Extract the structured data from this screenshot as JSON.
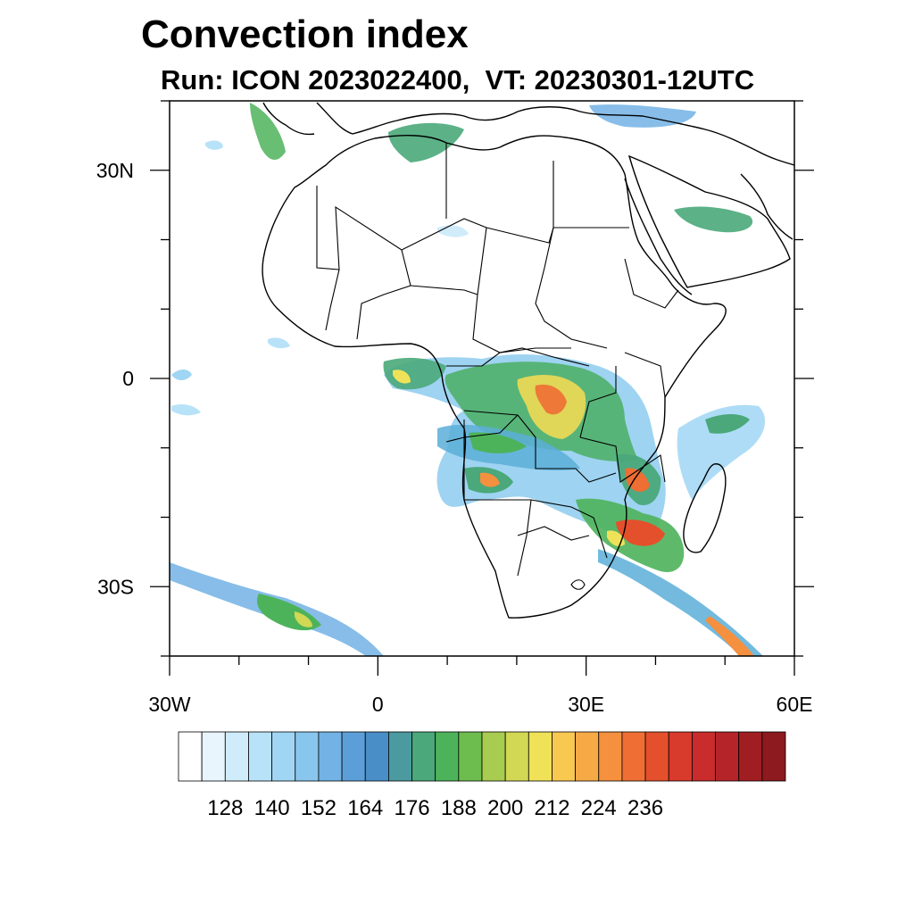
{
  "title": "Convection index",
  "subtitle": "Run: ICON 2023022400,  VT: 20230301-12UTC",
  "map": {
    "projection": "lat-lon",
    "lon_range": [
      -30,
      60
    ],
    "lat_range": [
      -40,
      40
    ],
    "lon_ticks": [
      {
        "value": -30,
        "label": "30W"
      },
      {
        "value": 0,
        "label": "0"
      },
      {
        "value": 30,
        "label": "30E"
      },
      {
        "value": 60,
        "label": "60E"
      }
    ],
    "lat_ticks": [
      {
        "value": 30,
        "label": "30N"
      },
      {
        "value": 0,
        "label": "0"
      },
      {
        "value": -30,
        "label": "30S"
      }
    ],
    "field": "convection index"
  },
  "colorbar": {
    "levels_labeled": [
      "128",
      "140",
      "152",
      "164",
      "176",
      "188",
      "200",
      "212",
      "224",
      "236"
    ],
    "colors": [
      "#ffffff",
      "#e8f5fc",
      "#d0ecfa",
      "#b8e2f8",
      "#a0d6f4",
      "#88c6ee",
      "#72b2e4",
      "#5c9ed8",
      "#4a8ec8",
      "#4a9aa0",
      "#4aa87a",
      "#4db35a",
      "#6cbc4e",
      "#a8cc50",
      "#d2d854",
      "#f0e258",
      "#f8c850",
      "#f6aa46",
      "#f4903e",
      "#ee6e34",
      "#e4502c",
      "#d83a2c",
      "#c82c2c",
      "#b42428",
      "#a01e22",
      "#8c1a1e"
    ]
  }
}
